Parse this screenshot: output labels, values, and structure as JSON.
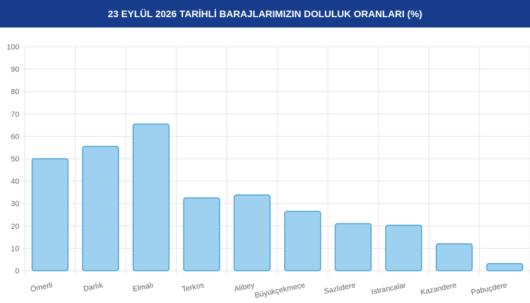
{
  "chart_data": {
    "type": "bar",
    "title": "23 EYLÜL 2026 TARİHLİ BARAJLARIMIZIN DOLULUK ORANLARI (%)",
    "categories": [
      "Ömerli",
      "Darlık",
      "Elmalı",
      "Terkos",
      "Alibey",
      "Büyükçekmece",
      "Sazlıdere",
      "Istrancalar",
      "Kazandere",
      "Pabuçdere"
    ],
    "values": [
      50,
      55.5,
      65.5,
      32.5,
      33.8,
      26.5,
      21,
      20.3,
      12,
      3.2
    ],
    "color": "#9dd1ef",
    "border_color": "#4ba4d6",
    "ylim": [
      0,
      100
    ],
    "yticks": [
      0,
      10,
      20,
      30,
      40,
      50,
      60,
      70,
      80,
      90,
      100
    ],
    "grid": true
  }
}
